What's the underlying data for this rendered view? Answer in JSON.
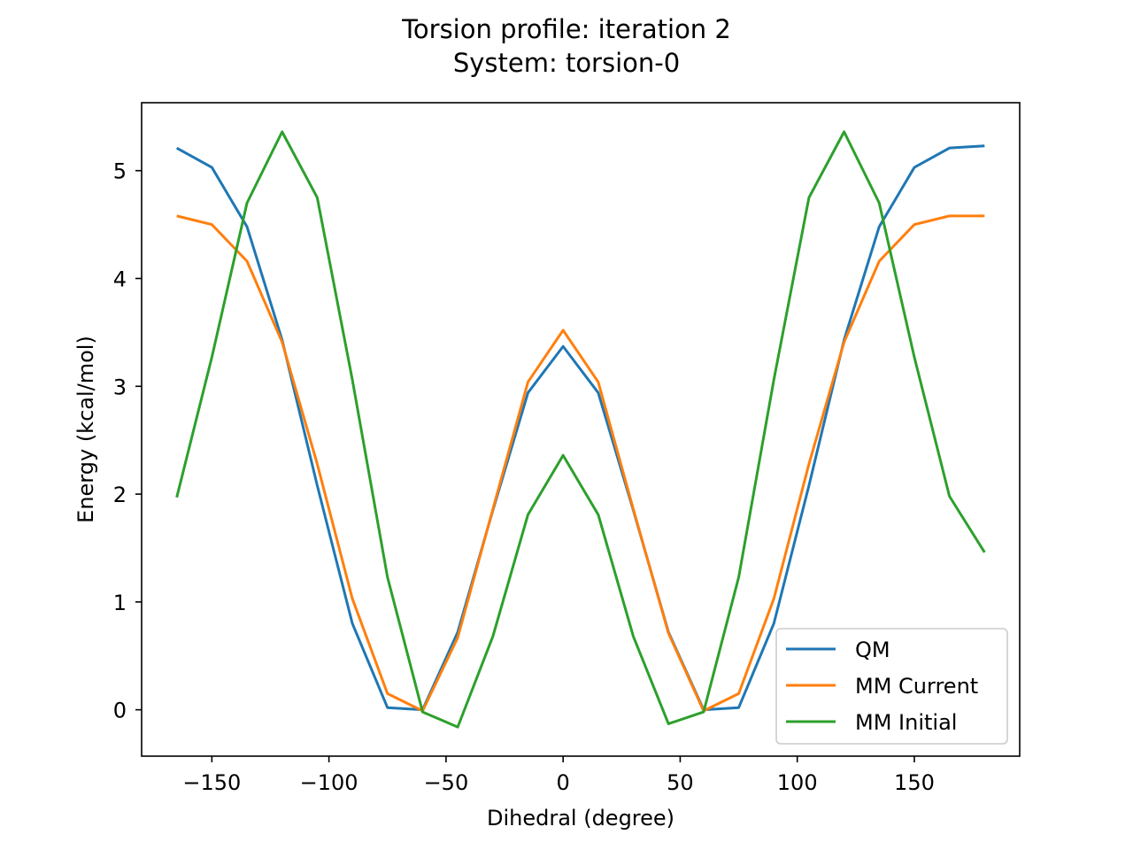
{
  "chart_data": {
    "type": "line",
    "title": "Torsion profile: iteration 2",
    "subtitle": "System: torsion-0",
    "xlabel": "Dihedral (degree)",
    "ylabel": "Energy (kcal/mol)",
    "xlim": [
      -180,
      195
    ],
    "ylim": [
      -0.43,
      5.63
    ],
    "xticks": [
      -150,
      -100,
      -50,
      0,
      50,
      100,
      150
    ],
    "xtick_labels": [
      "−150",
      "−100",
      "−50",
      "0",
      "50",
      "100",
      "150"
    ],
    "yticks": [
      0,
      1,
      2,
      3,
      4,
      5
    ],
    "ytick_labels": [
      "0",
      "1",
      "2",
      "3",
      "4",
      "5"
    ],
    "grid": false,
    "legend_position": "lower-right",
    "x": [
      -165,
      -150,
      -135,
      -120,
      -105,
      -90,
      -75,
      -60,
      -45,
      -30,
      -15,
      0,
      15,
      30,
      45,
      60,
      75,
      90,
      105,
      120,
      135,
      150,
      165,
      180
    ],
    "series": [
      {
        "name": "QM",
        "color": "#1f77b4",
        "values": [
          5.21,
          5.03,
          4.48,
          3.43,
          2.08,
          0.8,
          0.02,
          0.0,
          0.72,
          1.85,
          2.94,
          3.37,
          2.94,
          1.85,
          0.72,
          0.0,
          0.02,
          0.8,
          2.08,
          3.43,
          4.48,
          5.03,
          5.21,
          5.23
        ]
      },
      {
        "name": "MM Current",
        "color": "#ff7f0e",
        "values": [
          4.58,
          4.5,
          4.16,
          3.41,
          2.28,
          1.03,
          0.15,
          -0.01,
          0.67,
          1.86,
          3.04,
          3.52,
          3.04,
          1.86,
          0.71,
          -0.01,
          0.15,
          1.03,
          2.28,
          3.41,
          4.16,
          4.5,
          4.58,
          4.58
        ]
      },
      {
        "name": "MM Initial",
        "color": "#2ca02c",
        "values": [
          1.97,
          3.27,
          4.7,
          5.36,
          4.75,
          3.06,
          1.23,
          -0.02,
          -0.16,
          0.68,
          1.81,
          2.36,
          1.81,
          0.68,
          -0.13,
          -0.02,
          1.23,
          3.06,
          4.75,
          5.36,
          4.7,
          3.27,
          1.98,
          1.46
        ]
      }
    ]
  }
}
